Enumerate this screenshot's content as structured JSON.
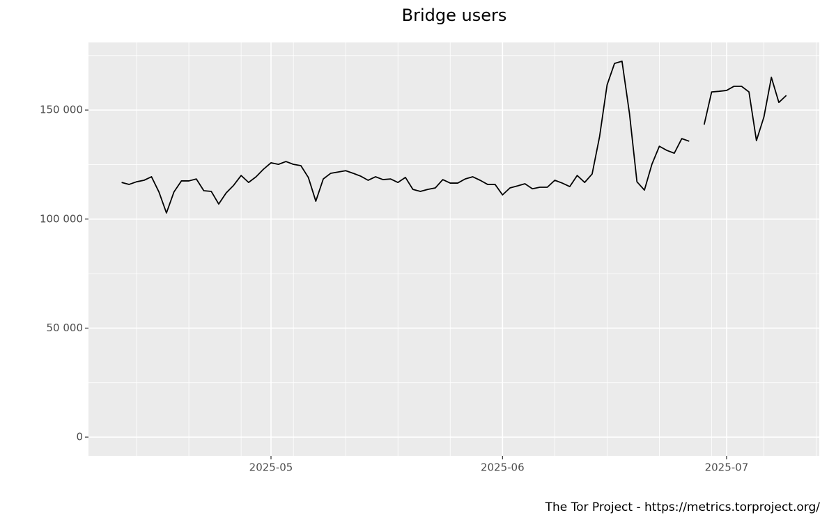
{
  "chart_data": {
    "type": "line",
    "title": "Bridge users",
    "caption": "The Tor Project - https://metrics.torproject.org/",
    "color": "#000000",
    "grid": true,
    "xlim": [
      "2025-04-07",
      "2025-07-13"
    ],
    "xticks": [
      {
        "value": "2025-05-01",
        "label": "2025-05"
      },
      {
        "value": "2025-06-01",
        "label": "2025-06"
      },
      {
        "value": "2025-07-01",
        "label": "2025-07"
      }
    ],
    "x_minor_gridlines": [
      "2025-04-13",
      "2025-04-20",
      "2025-04-27",
      "2025-05-04",
      "2025-05-11",
      "2025-05-18",
      "2025-05-25",
      "2025-06-08",
      "2025-06-15",
      "2025-06-22",
      "2025-06-29",
      "2025-07-06",
      "2025-07-13"
    ],
    "ylim": [
      -8600,
      181000
    ],
    "yticks": [
      0,
      {
        "value": 50000,
        "label": "50 000"
      },
      {
        "value": 100000,
        "label": "100 000"
      },
      {
        "value": 150000,
        "label": "150 000"
      }
    ],
    "y_minor_gridlines": [
      25000,
      75000,
      125000,
      175000
    ],
    "x": [
      "2025-04-11",
      "2025-04-12",
      "2025-04-13",
      "2025-04-14",
      "2025-04-15",
      "2025-04-16",
      "2025-04-17",
      "2025-04-18",
      "2025-04-19",
      "2025-04-20",
      "2025-04-21",
      "2025-04-22",
      "2025-04-23",
      "2025-04-24",
      "2025-04-25",
      "2025-04-26",
      "2025-04-27",
      "2025-04-28",
      "2025-04-29",
      "2025-04-30",
      "2025-05-01",
      "2025-05-02",
      "2025-05-03",
      "2025-05-04",
      "2025-05-05",
      "2025-05-06",
      "2025-05-07",
      "2025-05-08",
      "2025-05-09",
      "2025-05-10",
      "2025-05-11",
      "2025-05-12",
      "2025-05-13",
      "2025-05-14",
      "2025-05-15",
      "2025-05-16",
      "2025-05-17",
      "2025-05-18",
      "2025-05-19",
      "2025-05-20",
      "2025-05-21",
      "2025-05-22",
      "2025-05-23",
      "2025-05-24",
      "2025-05-25",
      "2025-05-26",
      "2025-05-27",
      "2025-05-28",
      "2025-05-29",
      "2025-05-30",
      "2025-05-31",
      "2025-06-01",
      "2025-06-02",
      "2025-06-03",
      "2025-06-04",
      "2025-06-05",
      "2025-06-06",
      "2025-06-07",
      "2025-06-08",
      "2025-06-09",
      "2025-06-10",
      "2025-06-11",
      "2025-06-12",
      "2025-06-13",
      "2025-06-14",
      "2025-06-15",
      "2025-06-16",
      "2025-06-17",
      "2025-06-18",
      "2025-06-19",
      "2025-06-20",
      "2025-06-21",
      "2025-06-22",
      "2025-06-23",
      "2025-06-24",
      "2025-06-25",
      "2025-06-26",
      "2025-06-27",
      "2025-06-28",
      "2025-06-29",
      "2025-06-30",
      "2025-07-01",
      "2025-07-02",
      "2025-07-03",
      "2025-07-04",
      "2025-07-05",
      "2025-07-06",
      "2025-07-07",
      "2025-07-08",
      "2025-07-09"
    ],
    "values": [
      116800,
      115900,
      117100,
      117800,
      119400,
      112400,
      102800,
      112400,
      117500,
      117500,
      118400,
      113000,
      112700,
      106900,
      112000,
      115500,
      120000,
      116800,
      119400,
      122900,
      125800,
      125100,
      126400,
      125100,
      124500,
      119100,
      108200,
      118400,
      121000,
      121600,
      122200,
      121000,
      119700,
      117800,
      119400,
      118100,
      118400,
      116800,
      119100,
      113600,
      112700,
      113600,
      114300,
      118100,
      116500,
      116500,
      118400,
      119400,
      117800,
      115900,
      115900,
      111100,
      114300,
      115200,
      116200,
      113900,
      114600,
      114600,
      117800,
      116500,
      114900,
      120000,
      116800,
      120700,
      137900,
      161500,
      171400,
      172400,
      148400,
      117100,
      113300,
      125100,
      133400,
      131500,
      130200,
      136900,
      135700,
      null,
      143300,
      158300,
      158600,
      159000,
      160900,
      160900,
      158300,
      136000,
      146800,
      165000,
      153500,
      156700
    ]
  }
}
